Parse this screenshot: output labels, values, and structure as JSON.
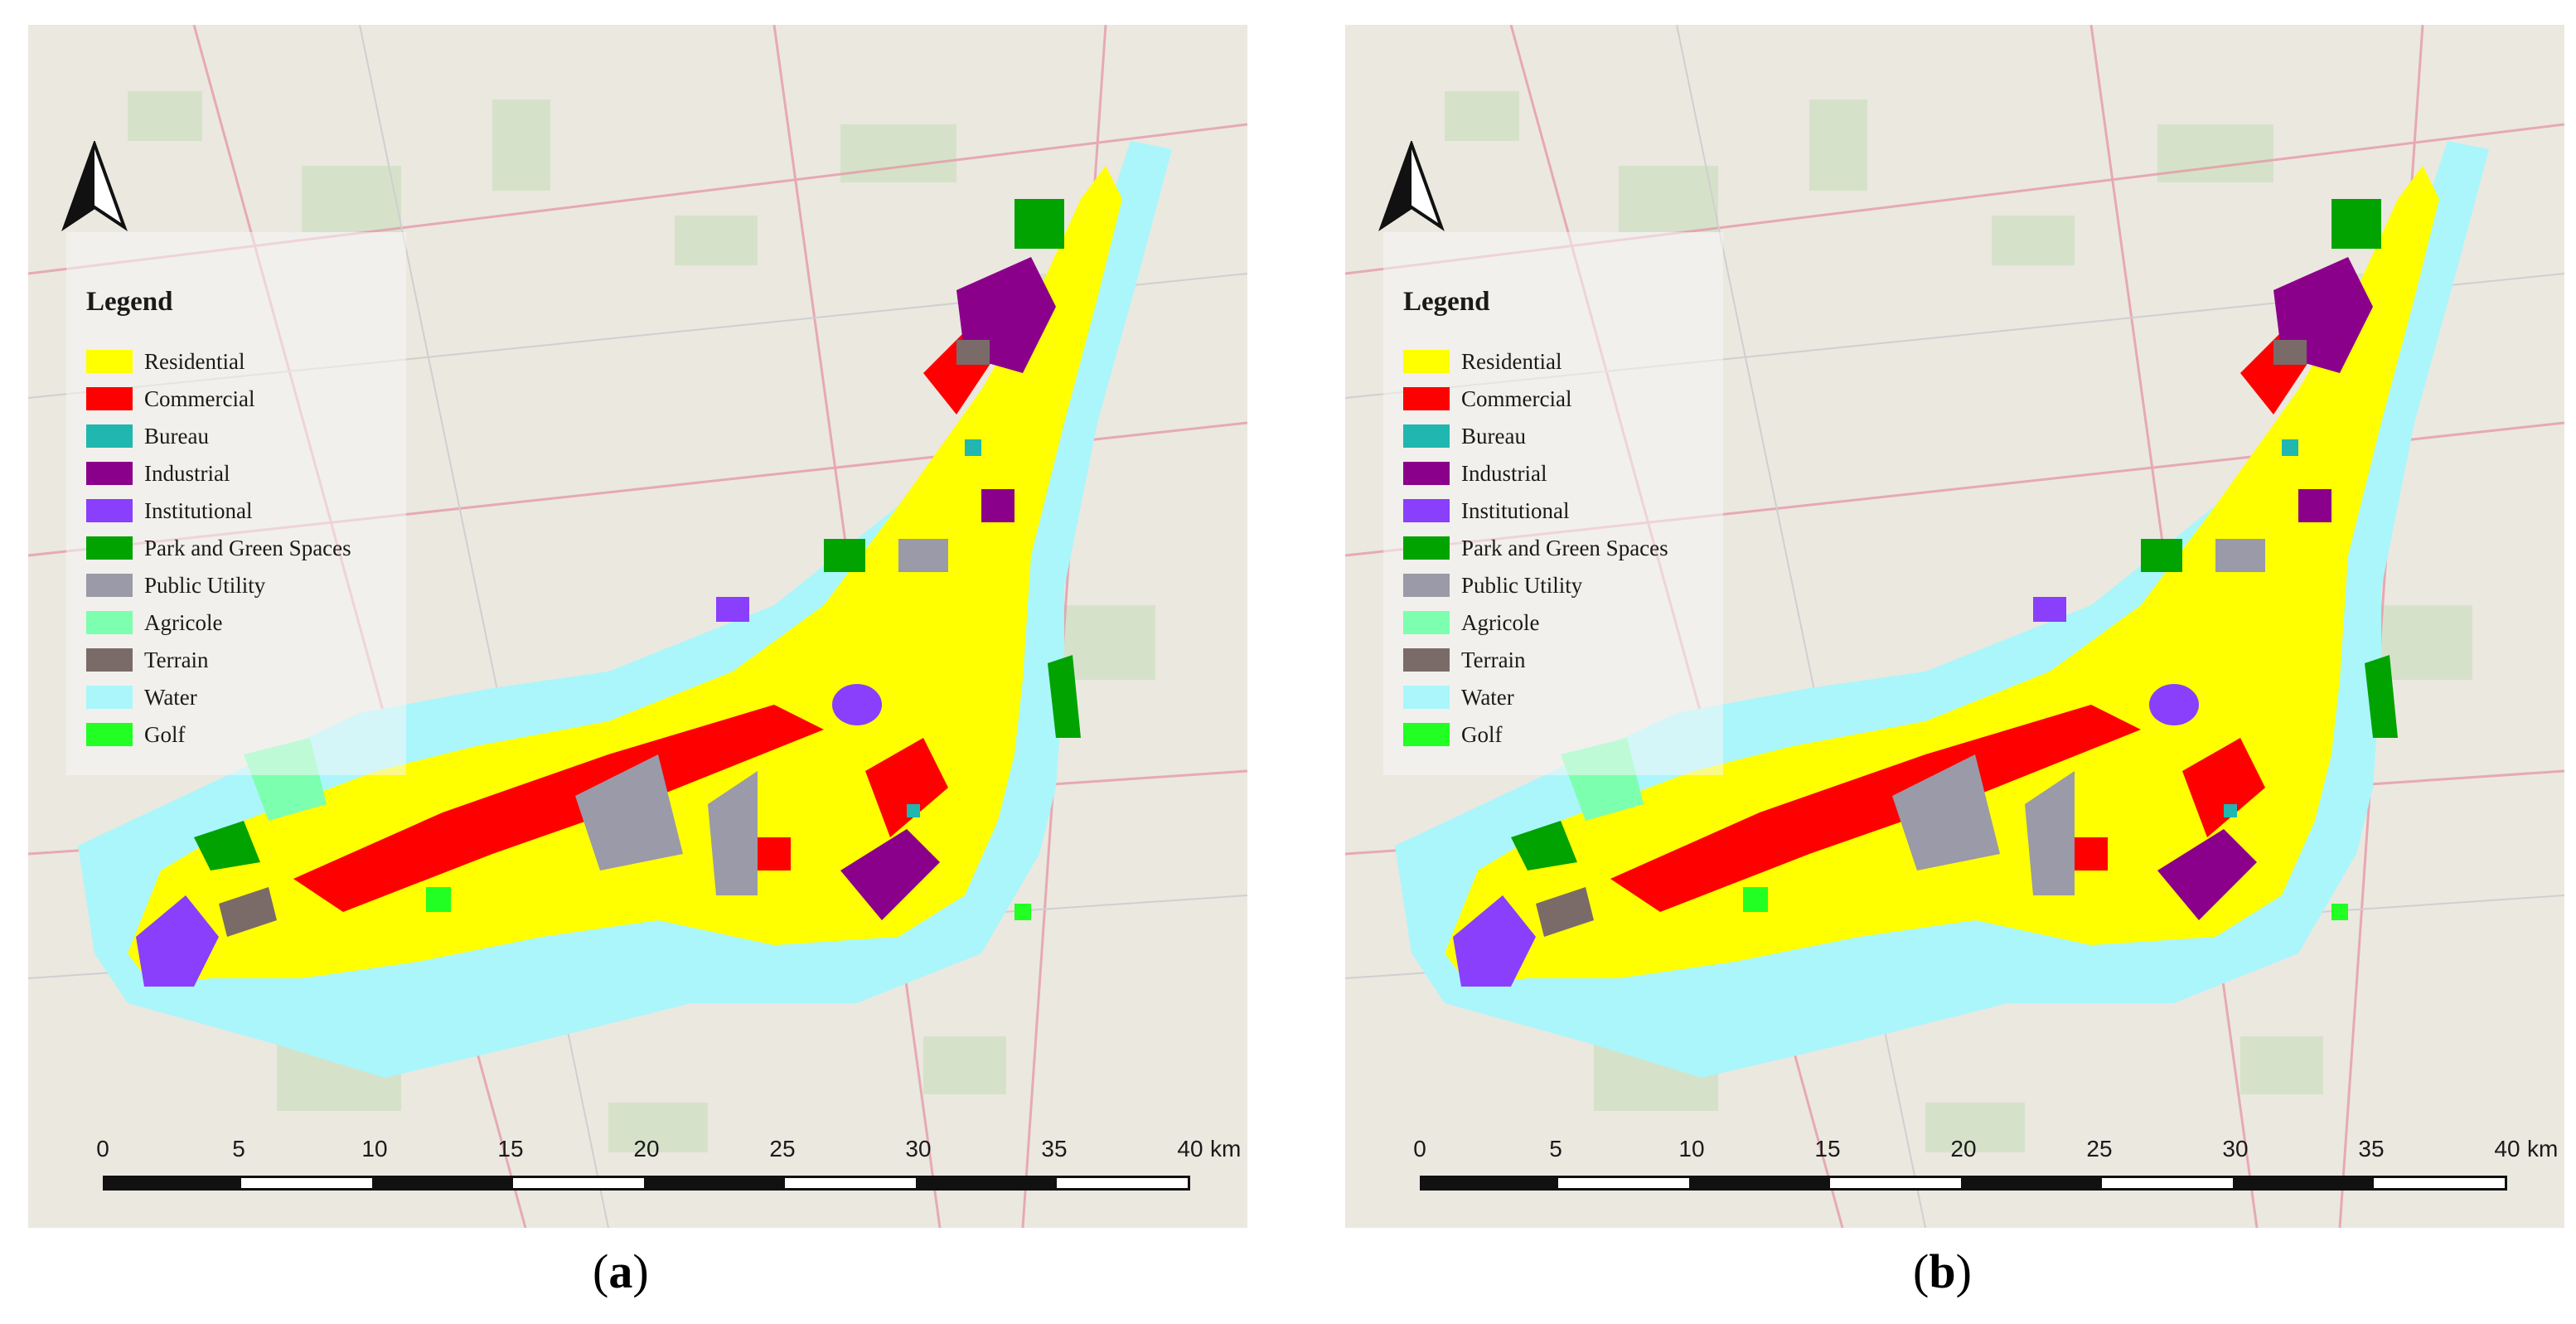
{
  "legend": {
    "title": "Legend",
    "items": [
      {
        "label": "Residential",
        "color": "#ffff00"
      },
      {
        "label": "Commercial",
        "color": "#ff0000"
      },
      {
        "label": "Bureau",
        "color": "#1fb7b0"
      },
      {
        "label": "Industrial",
        "color": "#8b008b"
      },
      {
        "label": "Institutional",
        "color": "#8a3ffc"
      },
      {
        "label": "Park and Green Spaces",
        "color": "#00a300"
      },
      {
        "label": "Public Utility",
        "color": "#9a9aa8"
      },
      {
        "label": "Agricole",
        "color": "#7dffb0"
      },
      {
        "label": "Terrain",
        "color": "#7a6b68"
      },
      {
        "label": "Water",
        "color": "#aaf6fb"
      },
      {
        "label": "Golf",
        "color": "#22ff22"
      }
    ]
  },
  "scalebar": {
    "ticks": [
      "0",
      "5",
      "10",
      "15",
      "20",
      "25",
      "30",
      "35",
      "40"
    ],
    "unit": "km"
  },
  "panels": [
    {
      "id": "a",
      "caption_open": "(",
      "caption_letter": "a",
      "caption_close": ")"
    },
    {
      "id": "b",
      "caption_open": "(",
      "caption_letter": "b",
      "caption_close": ")"
    }
  ]
}
